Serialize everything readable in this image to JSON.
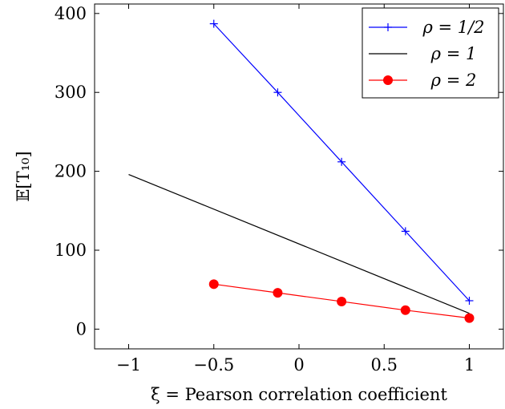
{
  "chart_data": {
    "type": "line",
    "xlabel": "ξ = Pearson correlation coefficient",
    "ylabel": "𝔼[T₁₀]",
    "xlim": [
      -1.2,
      1.2
    ],
    "ylim": [
      -25,
      412
    ],
    "x_ticks": [
      -1,
      -0.5,
      0,
      0.5,
      1
    ],
    "x_tick_labels": [
      "−1",
      "−0.5",
      "0",
      "0.5",
      "1"
    ],
    "y_ticks": [
      0,
      100,
      200,
      300,
      400
    ],
    "y_tick_labels": [
      "0",
      "100",
      "200",
      "300",
      "400"
    ],
    "legend_position": "top-right",
    "series": [
      {
        "name": "ρ = 1/2",
        "color": "#0000ff",
        "marker": "plus",
        "x": [
          -0.5,
          -0.125,
          0.25,
          0.625,
          1
        ],
        "y": [
          387,
          300,
          212,
          124,
          36
        ]
      },
      {
        "name": "ρ = 1",
        "color": "#000000",
        "marker": "none",
        "x": [
          -1,
          1
        ],
        "y": [
          196,
          20
        ]
      },
      {
        "name": "ρ = 2",
        "color": "#ff0000",
        "marker": "circle",
        "x": [
          -0.5,
          -0.125,
          0.25,
          0.625,
          1
        ],
        "y": [
          57,
          46,
          35,
          24,
          14
        ]
      }
    ]
  }
}
